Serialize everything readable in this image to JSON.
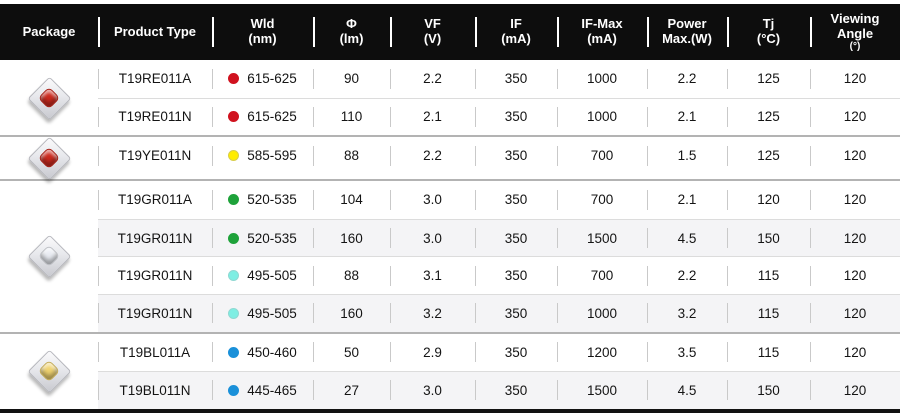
{
  "header": {
    "columns": [
      {
        "line1": "Package",
        "line2": ""
      },
      {
        "line1": "Product Type",
        "line2": ""
      },
      {
        "line1": "Wld",
        "line2": "(nm)"
      },
      {
        "line1": "Φ",
        "line2": "(lm)"
      },
      {
        "line1": "VF",
        "line2": "(V)"
      },
      {
        "line1": "IF",
        "line2": "(mA)"
      },
      {
        "line1": "IF-Max",
        "line2": "(mA)"
      },
      {
        "line1": "Power",
        "line2": "Max.(W)"
      },
      {
        "line1": "Tj",
        "line2": "(°C)"
      },
      {
        "line1": "Viewing",
        "line2": "Angle",
        "line3": "(°)"
      }
    ]
  },
  "colors": {
    "header_bg": "#0d0d0d",
    "shaded_row_bg": "#f4f4f6",
    "group_divider": "#b3b3b3",
    "row_divider": "#dcdcdc"
  },
  "groups": [
    {
      "package": {
        "icon": "led-package-red",
        "dome_color": "#cc2a1e"
      },
      "rows": [
        {
          "product": "T19RE011A",
          "dot": "#d0121f",
          "dot_border": "#d0121f",
          "wld": "615-625",
          "phi": "90",
          "vf": "2.2",
          "if_ma": "350",
          "if_max": "1000",
          "power_max": "2.2",
          "tj": "125",
          "viewing_angle": "120"
        },
        {
          "product": "T19RE011N",
          "dot": "#d0121f",
          "dot_border": "#d0121f",
          "wld": "615-625",
          "phi": "110",
          "vf": "2.1",
          "if_ma": "350",
          "if_max": "1000",
          "power_max": "2.1",
          "tj": "125",
          "viewing_angle": "120"
        }
      ]
    },
    {
      "package": {
        "icon": "led-package-red",
        "dome_color": "#cc2a1e"
      },
      "rows": [
        {
          "product": "T19YE011N",
          "dot": "#ffec00",
          "dot_border": "#d8cd4a",
          "wld": "585-595",
          "phi": "88",
          "vf": "2.2",
          "if_ma": "350",
          "if_max": "700",
          "power_max": "1.5",
          "tj": "125",
          "viewing_angle": "120"
        }
      ]
    },
    {
      "package": {
        "icon": "led-package-silver",
        "dome_color": "#e9ecf2"
      },
      "rows": [
        {
          "product": "T19GR011A",
          "dot": "#1ea23a",
          "dot_border": "#1ea23a",
          "wld": "520-535",
          "phi": "104",
          "vf": "3.0",
          "if_ma": "350",
          "if_max": "700",
          "power_max": "2.1",
          "tj": "120",
          "viewing_angle": "120"
        },
        {
          "product": "T19GR011N",
          "dot": "#1ea23a",
          "dot_border": "#1ea23a",
          "wld": "520-535",
          "phi": "160",
          "vf": "3.0",
          "if_ma": "350",
          "if_max": "1500",
          "power_max": "4.5",
          "tj": "150",
          "viewing_angle": "120"
        },
        {
          "product": "T19GR011N",
          "dot": "#7eeee3",
          "dot_border": "#8fd8d2",
          "wld": "495-505",
          "phi": "88",
          "vf": "3.1",
          "if_ma": "350",
          "if_max": "700",
          "power_max": "2.2",
          "tj": "115",
          "viewing_angle": "120"
        },
        {
          "product": "T19GR011N",
          "dot": "#7eeee3",
          "dot_border": "#8fd8d2",
          "wld": "495-505",
          "phi": "160",
          "vf": "3.2",
          "if_ma": "350",
          "if_max": "1000",
          "power_max": "3.2",
          "tj": "115",
          "viewing_angle": "120"
        }
      ]
    },
    {
      "package": {
        "icon": "led-package-gold",
        "dome_color": "#f0d370"
      },
      "rows": [
        {
          "product": "T19BL011A",
          "dot": "#1a90d9",
          "dot_border": "#1a90d9",
          "wld": "450-460",
          "phi": "50",
          "vf": "2.9",
          "if_ma": "350",
          "if_max": "1200",
          "power_max": "3.5",
          "tj": "115",
          "viewing_angle": "120"
        },
        {
          "product": "T19BL011N",
          "dot": "#1a90d9",
          "dot_border": "#1a90d9",
          "wld": "445-465",
          "phi": "27",
          "vf": "3.0",
          "if_ma": "350",
          "if_max": "1500",
          "power_max": "4.5",
          "tj": "150",
          "viewing_angle": "120"
        }
      ]
    }
  ]
}
